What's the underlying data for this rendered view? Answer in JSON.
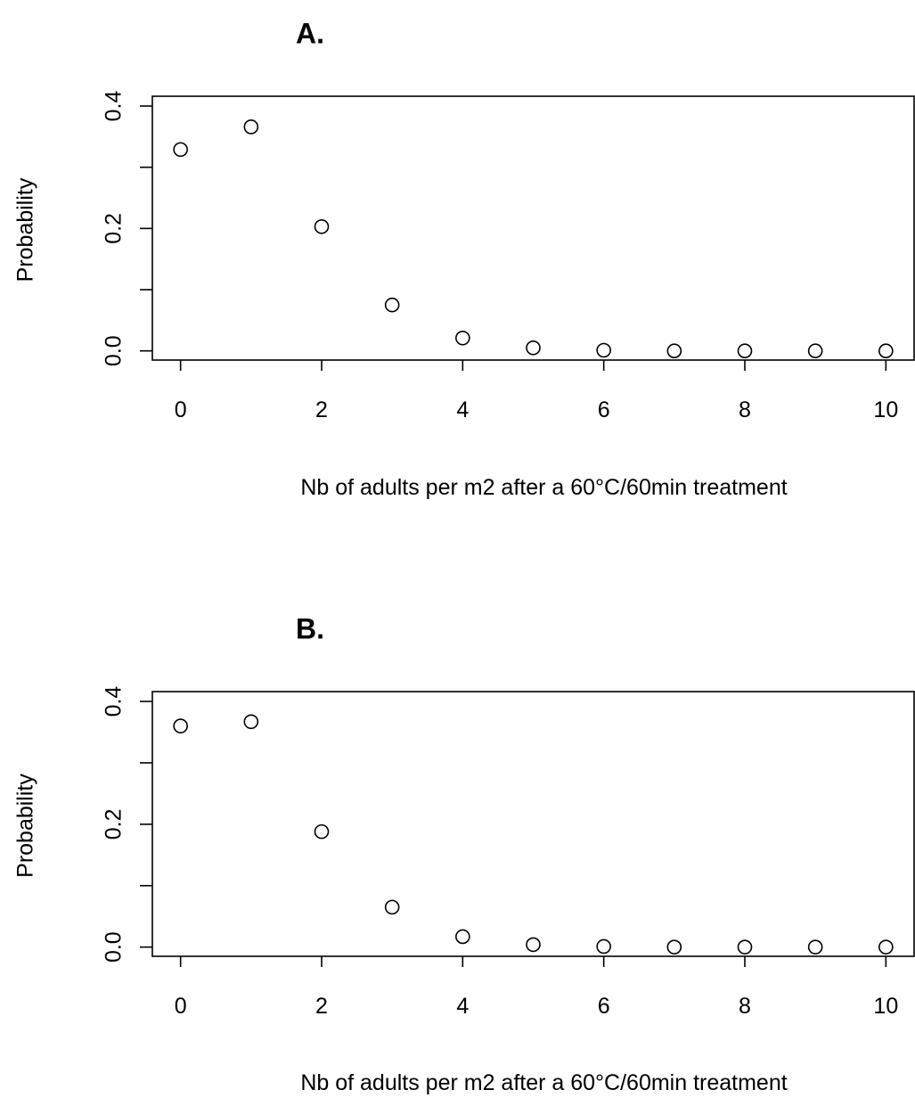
{
  "chart_data": [
    {
      "type": "scatter",
      "title": "A.",
      "xlabel": "Nb of adults per m2 after a 60°C/60min treatment",
      "ylabel": "Probability",
      "x": [
        0,
        1,
        2,
        3,
        4,
        5,
        6,
        7,
        8,
        9,
        10
      ],
      "y": [
        0.329,
        0.366,
        0.203,
        0.075,
        0.021,
        0.005,
        0.001,
        0.0,
        0.0,
        0.0,
        0.0
      ],
      "xlim": [
        -0.4,
        10.4
      ],
      "ylim": [
        -0.015,
        0.416
      ],
      "xticks": [
        0,
        2,
        4,
        6,
        8,
        10
      ],
      "xtick_labels": [
        "0",
        "2",
        "4",
        "6",
        "8",
        "10"
      ],
      "yticks": [
        0.0,
        0.1,
        0.2,
        0.3,
        0.4
      ],
      "ytick_labels": [
        "0.0",
        "",
        "0.2",
        "",
        "0.4"
      ],
      "marker": "open-circle",
      "grid": false
    },
    {
      "type": "scatter",
      "title": "B.",
      "xlabel": "Nb of adults per m2 after a 60°C/60min treatment",
      "ylabel": "Probability",
      "x": [
        0,
        1,
        2,
        3,
        4,
        5,
        6,
        7,
        8,
        9,
        10
      ],
      "y": [
        0.36,
        0.367,
        0.188,
        0.065,
        0.017,
        0.004,
        0.001,
        0.0,
        0.0,
        0.0,
        0.0
      ],
      "xlim": [
        -0.4,
        10.4
      ],
      "ylim": [
        -0.015,
        0.416
      ],
      "xticks": [
        0,
        2,
        4,
        6,
        8,
        10
      ],
      "xtick_labels": [
        "0",
        "2",
        "4",
        "6",
        "8",
        "10"
      ],
      "yticks": [
        0.0,
        0.1,
        0.2,
        0.3,
        0.4
      ],
      "ytick_labels": [
        "0.0",
        "",
        "0.2",
        "",
        "0.4"
      ],
      "marker": "open-circle",
      "grid": false
    }
  ]
}
